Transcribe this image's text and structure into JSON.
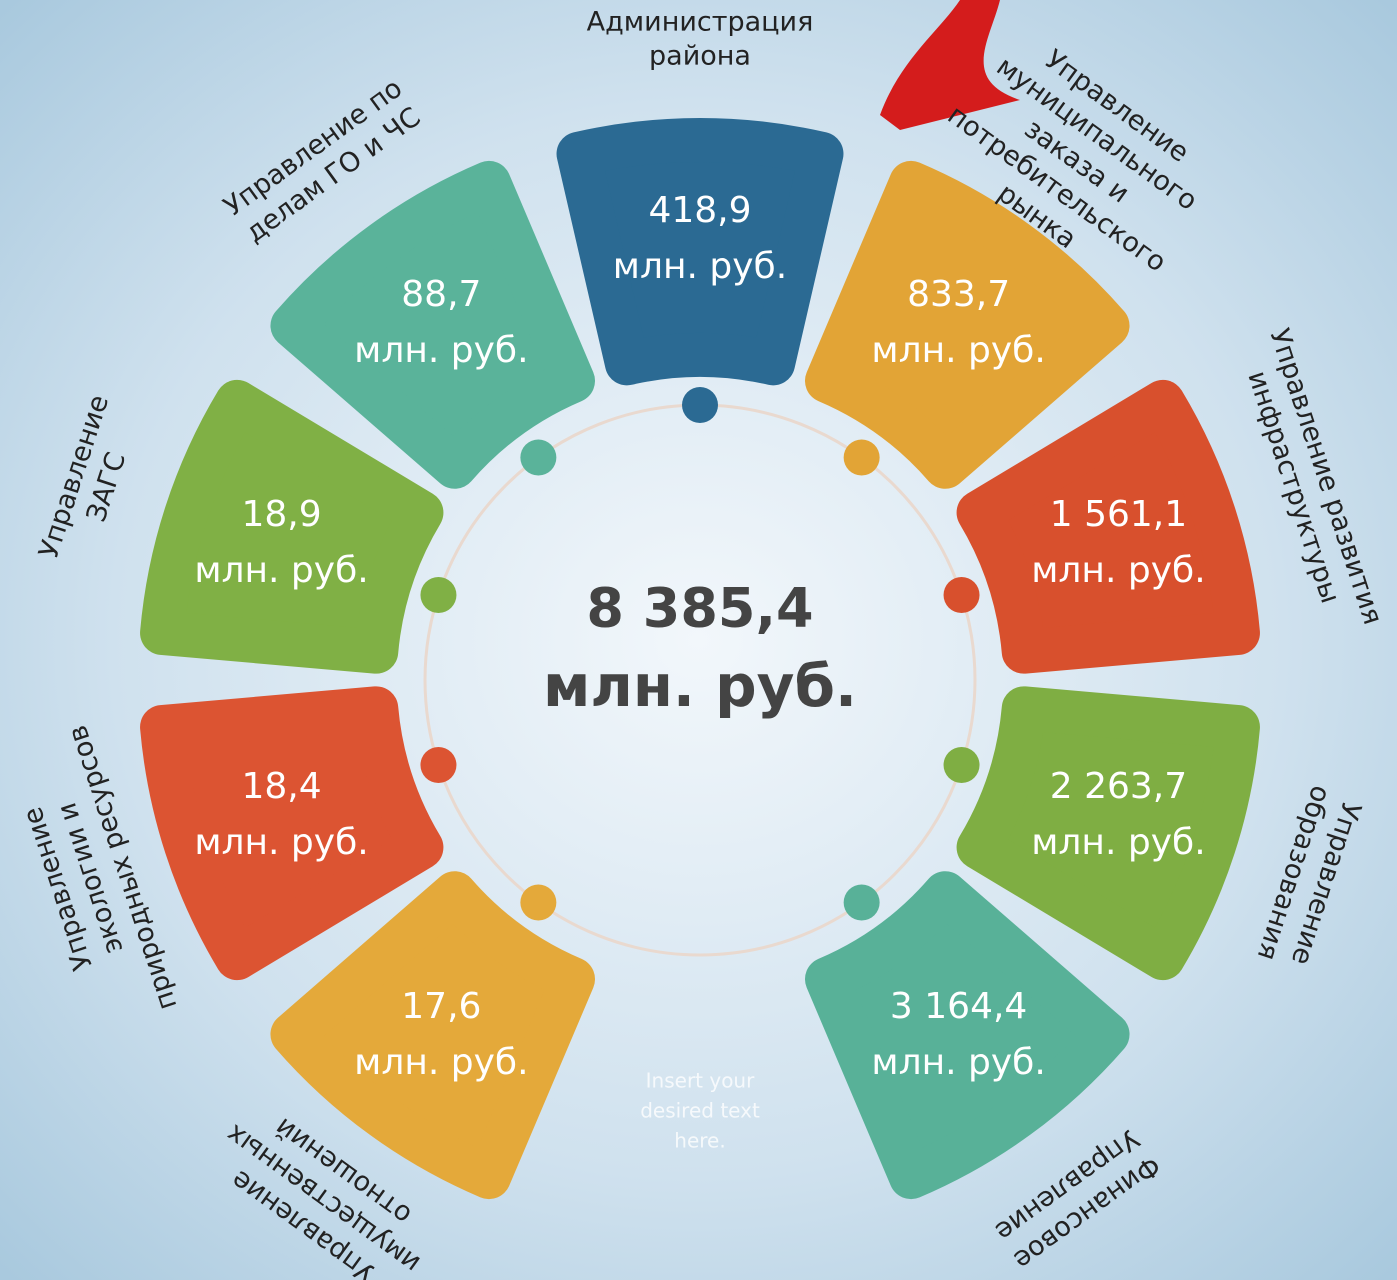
{
  "center": {
    "value": "8 385,4",
    "unit": "млн. руб."
  },
  "unit": "млн. руб.",
  "segments": [
    {
      "label": [
        "Администрация",
        "района"
      ],
      "value": "418,9",
      "color": "#2b6a93"
    },
    {
      "label": [
        "Управление",
        "муниципального",
        "заказа и",
        "потребительского",
        "рынка"
      ],
      "value": "833,7",
      "color": "#e2a436"
    },
    {
      "label": [
        "Управление развития",
        "инфраструктуры"
      ],
      "value": "1 561,1",
      "color": "#d8502d"
    },
    {
      "label": [
        "Управление",
        "образования"
      ],
      "value": "2 263,7",
      "color": "#7fae43"
    },
    {
      "label": [
        "Финансовое",
        "Управление"
      ],
      "value": "3 164,4",
      "color": "#58b198"
    },
    {
      "label": [
        "Управление",
        "имущественных",
        "отношений"
      ],
      "value": "17,6",
      "color": "#e4a93a"
    },
    {
      "label": [
        "Управление",
        "экологии и",
        "природных ресурсов"
      ],
      "value": "18,4",
      "color": "#dc5432"
    },
    {
      "label": [
        "Управление",
        "ЗАГС"
      ],
      "value": "18,9",
      "color": "#80b045"
    },
    {
      "label": [
        "Управление по",
        "делам ГО и ЧС"
      ],
      "value": "88,7",
      "color": "#5ab39a"
    }
  ],
  "placeholder": [
    "Insert your",
    "desired text",
    "here."
  ]
}
